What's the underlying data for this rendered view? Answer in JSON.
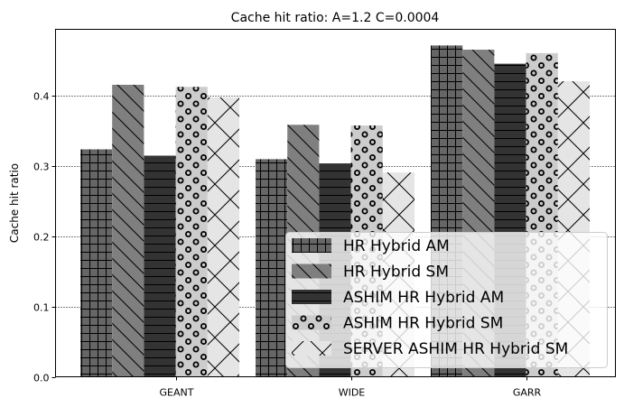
{
  "chart_data": {
    "type": "bar",
    "title": "Cache hit ratio: A=1.2 C=0.0004",
    "xlabel": "",
    "ylabel": "Cache hit ratio",
    "ylim": [
      0,
      0.495
    ],
    "yticks": [
      "0.0",
      "0.1",
      "0.2",
      "0.3",
      "0.4"
    ],
    "grid": "horizontal dotted",
    "legend_position": "lower-right",
    "categories": [
      "GEANT",
      "WIDE",
      "GARR"
    ],
    "series": [
      {
        "name": "HR Hybrid AM",
        "values": [
          0.324,
          0.31,
          0.472
        ],
        "color": "#666666",
        "pattern": "grid"
      },
      {
        "name": "HR Hybrid SM",
        "values": [
          0.416,
          0.359,
          0.466
        ],
        "color": "#7f7f7f",
        "pattern": "backslash"
      },
      {
        "name": "ASHIM HR Hybrid AM",
        "values": [
          0.315,
          0.304,
          0.446
        ],
        "color": "#333333",
        "pattern": "horizontal"
      },
      {
        "name": "ASHIM HR Hybrid SM",
        "values": [
          0.413,
          0.358,
          0.461
        ],
        "color": "#cccccc",
        "pattern": "circles"
      },
      {
        "name": "SERVER ASHIM HR Hybrid SM",
        "values": [
          0.398,
          0.291,
          0.421
        ],
        "color": "#e5e5e5",
        "pattern": "crosshatch"
      }
    ]
  }
}
